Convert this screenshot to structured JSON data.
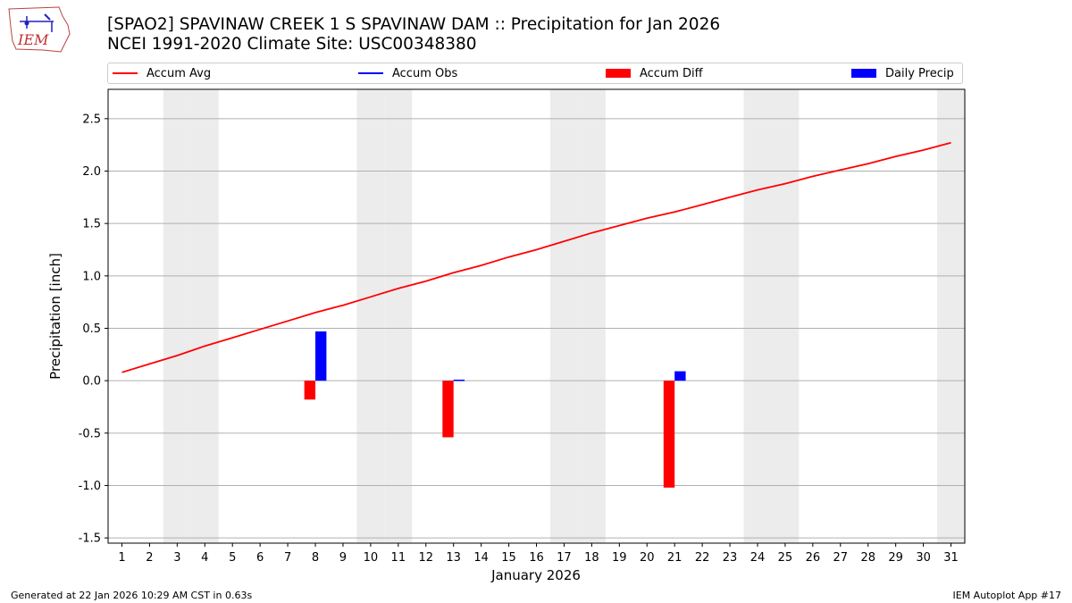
{
  "logo": {
    "text": "IEM"
  },
  "header": {
    "title_line1": "[SPAO2] SPAVINAW CREEK 1 S SPAVINAW DAM :: Precipitation for Jan 2026",
    "title_line2": "NCEI 1991-2020 Climate Site: USC00348380"
  },
  "footer": {
    "left": "Generated at 22 Jan 2026 10:29 AM CST in 0.63s",
    "right": "IEM Autoplot App #17"
  },
  "colors": {
    "avg": "#ff0000",
    "obs": "#0000ff",
    "diff": "#ff0000",
    "daily": "#0000ff",
    "weekend": "#ececec",
    "grid": "#b0b0b0"
  },
  "chart_data": {
    "type": "bar",
    "xlabel": "January 2026",
    "ylabel": "Precipitation [inch]",
    "ylim": [
      -1.55,
      2.78
    ],
    "xlim": [
      0.5,
      31.5
    ],
    "yticks": [
      "-1.5",
      "-1.0",
      "-0.5",
      "0.0",
      "0.5",
      "1.0",
      "1.5",
      "2.0",
      "2.5"
    ],
    "x": [
      1,
      2,
      3,
      4,
      5,
      6,
      7,
      8,
      9,
      10,
      11,
      12,
      13,
      14,
      15,
      16,
      17,
      18,
      19,
      20,
      21,
      22,
      23,
      24,
      25,
      26,
      27,
      28,
      29,
      30,
      31
    ],
    "weekend_days": [
      3,
      4,
      10,
      11,
      17,
      18,
      24,
      25,
      31
    ],
    "grid": "horizontal",
    "legend": {
      "placement": "top",
      "entries": [
        "Accum Avg",
        "Accum Obs",
        "Accum Diff",
        "Daily Precip"
      ]
    },
    "series": [
      {
        "name": "Accum Avg",
        "kind": "line",
        "values": [
          0.08,
          0.16,
          0.24,
          0.33,
          0.41,
          0.49,
          0.57,
          0.65,
          0.72,
          0.8,
          0.88,
          0.95,
          1.03,
          1.1,
          1.18,
          1.25,
          1.33,
          1.41,
          1.48,
          1.55,
          1.61,
          1.68,
          1.75,
          1.82,
          1.88,
          1.95,
          2.01,
          2.07,
          2.14,
          2.2,
          2.27
        ]
      },
      {
        "name": "Accum Diff",
        "kind": "bar",
        "points": [
          {
            "x": 8,
            "y": -0.18
          },
          {
            "x": 13,
            "y": -0.54
          },
          {
            "x": 21,
            "y": -1.02
          }
        ]
      },
      {
        "name": "Daily Precip",
        "kind": "bar",
        "points": [
          {
            "x": 8,
            "y": 0.47
          },
          {
            "x": 13,
            "y": 0.01
          },
          {
            "x": 21,
            "y": 0.09
          }
        ]
      }
    ]
  }
}
